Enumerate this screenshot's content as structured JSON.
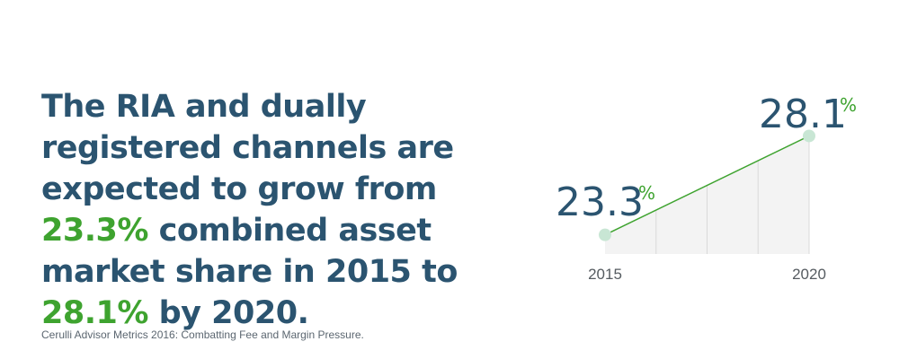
{
  "headline": {
    "part1": "The RIA and dually registered channels are expected to grow from ",
    "value_start": "23.3%",
    "part2": " combined asset market share in 2015 to ",
    "value_end": "28.1%",
    "part3": " by 2020."
  },
  "source": "Cerulli Advisor Metrics 2016: Combatting Fee and Margin Pressure.",
  "colors": {
    "text": "#2b5470",
    "accent": "#3ea32f",
    "point": "#c8e6d4",
    "area": "#f3f3f3"
  },
  "chart_data": {
    "type": "area",
    "x": [
      "2015",
      "2020"
    ],
    "series": [
      {
        "values": [
          23.3,
          28.1
        ]
      }
    ],
    "labels": {
      "start": "23.3",
      "end": "28.1",
      "unit": "%"
    },
    "grid": true
  }
}
